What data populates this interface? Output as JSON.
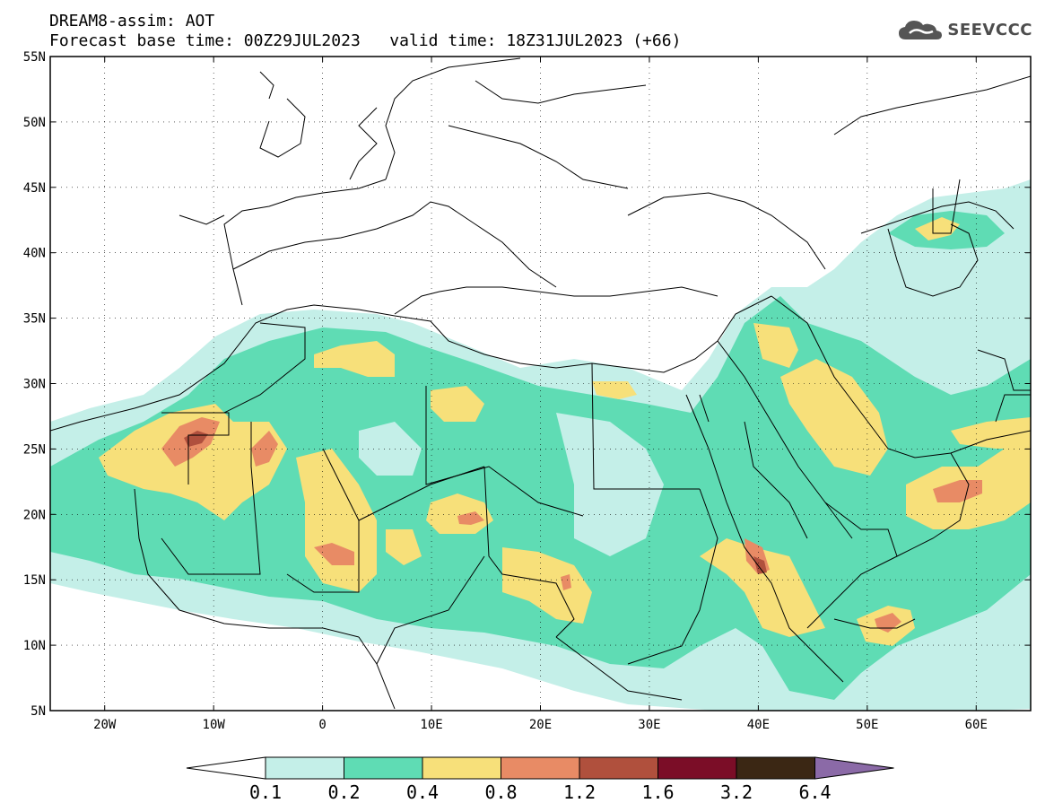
{
  "header": {
    "title": "DREAM8-assim: AOT",
    "base_label": "Forecast base time: 00Z29JUL2023",
    "valid_label": "valid time: 18Z31JUL2023 (+66)"
  },
  "logo": {
    "text": "SEEVCCC",
    "icon": "cloud-icon",
    "color": "#4d4d4d"
  },
  "map": {
    "lon_range": [
      -25,
      65
    ],
    "lat_range": [
      5,
      55
    ],
    "lat_labels": [
      "55N",
      "50N",
      "45N",
      "40N",
      "35N",
      "30N",
      "25N",
      "20N",
      "15N",
      "10N",
      "5N"
    ],
    "lon_labels": [
      "20W",
      "10W",
      "0",
      "10E",
      "20E",
      "30E",
      "40E",
      "50E",
      "60E"
    ]
  },
  "colorbar": {
    "levels": [
      "0.1",
      "0.2",
      "0.4",
      "0.8",
      "1.2",
      "1.6",
      "3.2",
      "6.4"
    ],
    "colors": [
      "#ffffff",
      "#c4efe8",
      "#5fdcb4",
      "#f7e07a",
      "#e88b65",
      "#b0503d",
      "#7b0d27",
      "#3b2714",
      "#8b6aa7"
    ]
  }
}
